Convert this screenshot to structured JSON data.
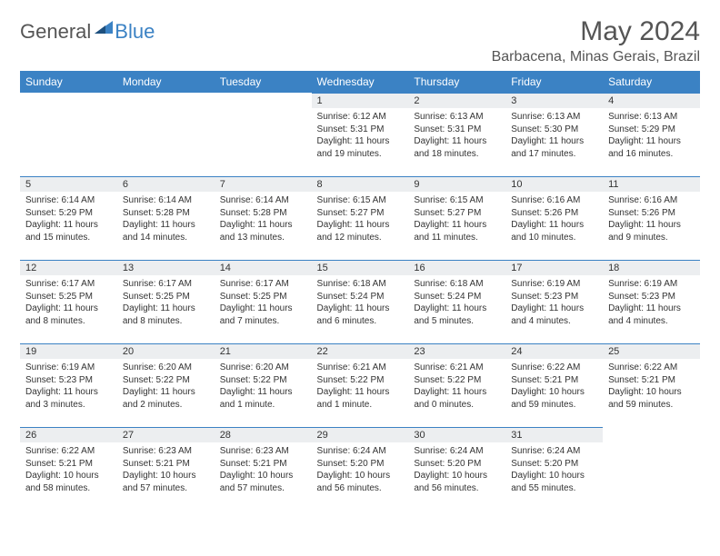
{
  "brand": {
    "part1": "General",
    "part2": "Blue"
  },
  "title": "May 2024",
  "location": "Barbacena, Minas Gerais, Brazil",
  "colors": {
    "header_bg": "#3b82c4",
    "header_fg": "#ffffff",
    "daynum_bg": "#eceef0",
    "daynum_border": "#3b82c4",
    "text": "#333333",
    "title": "#555555",
    "background": "#ffffff"
  },
  "typography": {
    "title_fontsize": 30,
    "location_fontsize": 16,
    "th_fontsize": 12,
    "cell_fontsize": 10
  },
  "weekdays": [
    "Sunday",
    "Monday",
    "Tuesday",
    "Wednesday",
    "Thursday",
    "Friday",
    "Saturday"
  ],
  "first_day_index": 3,
  "days": [
    {
      "n": "1",
      "sunrise": "Sunrise: 6:12 AM",
      "sunset": "Sunset: 5:31 PM",
      "dl1": "Daylight: 11 hours",
      "dl2": "and 19 minutes."
    },
    {
      "n": "2",
      "sunrise": "Sunrise: 6:13 AM",
      "sunset": "Sunset: 5:31 PM",
      "dl1": "Daylight: 11 hours",
      "dl2": "and 18 minutes."
    },
    {
      "n": "3",
      "sunrise": "Sunrise: 6:13 AM",
      "sunset": "Sunset: 5:30 PM",
      "dl1": "Daylight: 11 hours",
      "dl2": "and 17 minutes."
    },
    {
      "n": "4",
      "sunrise": "Sunrise: 6:13 AM",
      "sunset": "Sunset: 5:29 PM",
      "dl1": "Daylight: 11 hours",
      "dl2": "and 16 minutes."
    },
    {
      "n": "5",
      "sunrise": "Sunrise: 6:14 AM",
      "sunset": "Sunset: 5:29 PM",
      "dl1": "Daylight: 11 hours",
      "dl2": "and 15 minutes."
    },
    {
      "n": "6",
      "sunrise": "Sunrise: 6:14 AM",
      "sunset": "Sunset: 5:28 PM",
      "dl1": "Daylight: 11 hours",
      "dl2": "and 14 minutes."
    },
    {
      "n": "7",
      "sunrise": "Sunrise: 6:14 AM",
      "sunset": "Sunset: 5:28 PM",
      "dl1": "Daylight: 11 hours",
      "dl2": "and 13 minutes."
    },
    {
      "n": "8",
      "sunrise": "Sunrise: 6:15 AM",
      "sunset": "Sunset: 5:27 PM",
      "dl1": "Daylight: 11 hours",
      "dl2": "and 12 minutes."
    },
    {
      "n": "9",
      "sunrise": "Sunrise: 6:15 AM",
      "sunset": "Sunset: 5:27 PM",
      "dl1": "Daylight: 11 hours",
      "dl2": "and 11 minutes."
    },
    {
      "n": "10",
      "sunrise": "Sunrise: 6:16 AM",
      "sunset": "Sunset: 5:26 PM",
      "dl1": "Daylight: 11 hours",
      "dl2": "and 10 minutes."
    },
    {
      "n": "11",
      "sunrise": "Sunrise: 6:16 AM",
      "sunset": "Sunset: 5:26 PM",
      "dl1": "Daylight: 11 hours",
      "dl2": "and 9 minutes."
    },
    {
      "n": "12",
      "sunrise": "Sunrise: 6:17 AM",
      "sunset": "Sunset: 5:25 PM",
      "dl1": "Daylight: 11 hours",
      "dl2": "and 8 minutes."
    },
    {
      "n": "13",
      "sunrise": "Sunrise: 6:17 AM",
      "sunset": "Sunset: 5:25 PM",
      "dl1": "Daylight: 11 hours",
      "dl2": "and 8 minutes."
    },
    {
      "n": "14",
      "sunrise": "Sunrise: 6:17 AM",
      "sunset": "Sunset: 5:25 PM",
      "dl1": "Daylight: 11 hours",
      "dl2": "and 7 minutes."
    },
    {
      "n": "15",
      "sunrise": "Sunrise: 6:18 AM",
      "sunset": "Sunset: 5:24 PM",
      "dl1": "Daylight: 11 hours",
      "dl2": "and 6 minutes."
    },
    {
      "n": "16",
      "sunrise": "Sunrise: 6:18 AM",
      "sunset": "Sunset: 5:24 PM",
      "dl1": "Daylight: 11 hours",
      "dl2": "and 5 minutes."
    },
    {
      "n": "17",
      "sunrise": "Sunrise: 6:19 AM",
      "sunset": "Sunset: 5:23 PM",
      "dl1": "Daylight: 11 hours",
      "dl2": "and 4 minutes."
    },
    {
      "n": "18",
      "sunrise": "Sunrise: 6:19 AM",
      "sunset": "Sunset: 5:23 PM",
      "dl1": "Daylight: 11 hours",
      "dl2": "and 4 minutes."
    },
    {
      "n": "19",
      "sunrise": "Sunrise: 6:19 AM",
      "sunset": "Sunset: 5:23 PM",
      "dl1": "Daylight: 11 hours",
      "dl2": "and 3 minutes."
    },
    {
      "n": "20",
      "sunrise": "Sunrise: 6:20 AM",
      "sunset": "Sunset: 5:22 PM",
      "dl1": "Daylight: 11 hours",
      "dl2": "and 2 minutes."
    },
    {
      "n": "21",
      "sunrise": "Sunrise: 6:20 AM",
      "sunset": "Sunset: 5:22 PM",
      "dl1": "Daylight: 11 hours",
      "dl2": "and 1 minute."
    },
    {
      "n": "22",
      "sunrise": "Sunrise: 6:21 AM",
      "sunset": "Sunset: 5:22 PM",
      "dl1": "Daylight: 11 hours",
      "dl2": "and 1 minute."
    },
    {
      "n": "23",
      "sunrise": "Sunrise: 6:21 AM",
      "sunset": "Sunset: 5:22 PM",
      "dl1": "Daylight: 11 hours",
      "dl2": "and 0 minutes."
    },
    {
      "n": "24",
      "sunrise": "Sunrise: 6:22 AM",
      "sunset": "Sunset: 5:21 PM",
      "dl1": "Daylight: 10 hours",
      "dl2": "and 59 minutes."
    },
    {
      "n": "25",
      "sunrise": "Sunrise: 6:22 AM",
      "sunset": "Sunset: 5:21 PM",
      "dl1": "Daylight: 10 hours",
      "dl2": "and 59 minutes."
    },
    {
      "n": "26",
      "sunrise": "Sunrise: 6:22 AM",
      "sunset": "Sunset: 5:21 PM",
      "dl1": "Daylight: 10 hours",
      "dl2": "and 58 minutes."
    },
    {
      "n": "27",
      "sunrise": "Sunrise: 6:23 AM",
      "sunset": "Sunset: 5:21 PM",
      "dl1": "Daylight: 10 hours",
      "dl2": "and 57 minutes."
    },
    {
      "n": "28",
      "sunrise": "Sunrise: 6:23 AM",
      "sunset": "Sunset: 5:21 PM",
      "dl1": "Daylight: 10 hours",
      "dl2": "and 57 minutes."
    },
    {
      "n": "29",
      "sunrise": "Sunrise: 6:24 AM",
      "sunset": "Sunset: 5:20 PM",
      "dl1": "Daylight: 10 hours",
      "dl2": "and 56 minutes."
    },
    {
      "n": "30",
      "sunrise": "Sunrise: 6:24 AM",
      "sunset": "Sunset: 5:20 PM",
      "dl1": "Daylight: 10 hours",
      "dl2": "and 56 minutes."
    },
    {
      "n": "31",
      "sunrise": "Sunrise: 6:24 AM",
      "sunset": "Sunset: 5:20 PM",
      "dl1": "Daylight: 10 hours",
      "dl2": "and 55 minutes."
    }
  ]
}
